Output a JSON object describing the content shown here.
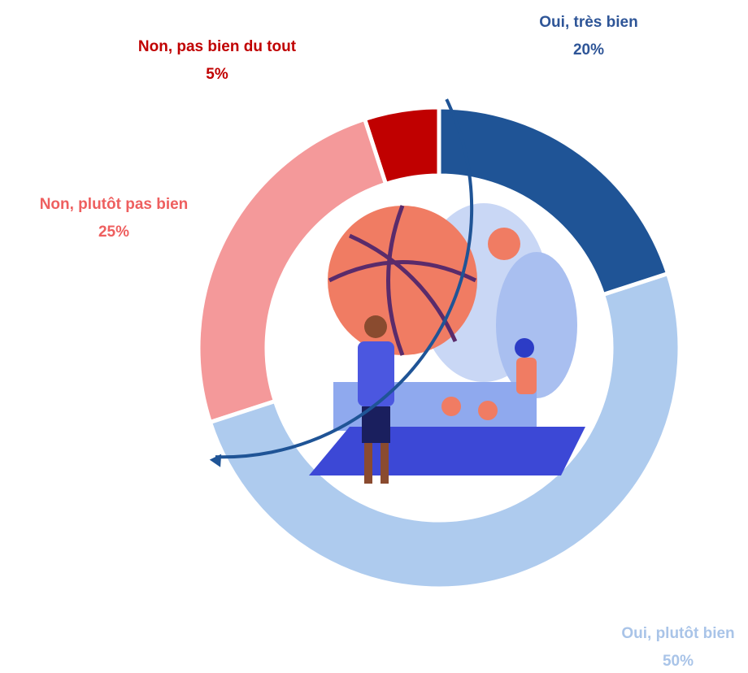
{
  "chart_data": {
    "type": "donut",
    "categories": [
      "Oui, très bien",
      "Oui, plutôt bien",
      "Non, plutôt pas bien",
      "Non, pas bien du tout"
    ],
    "values": [
      20,
      50,
      25,
      5
    ],
    "value_labels": [
      "20%",
      "50%",
      "25%",
      "5%"
    ],
    "colors": [
      "#1f5496",
      "#aecbee",
      "#f4999a",
      "#c00000"
    ],
    "label_colors": [
      "#2e5597",
      "#a9c4e8",
      "#ee5f5f",
      "#c00000"
    ]
  }
}
